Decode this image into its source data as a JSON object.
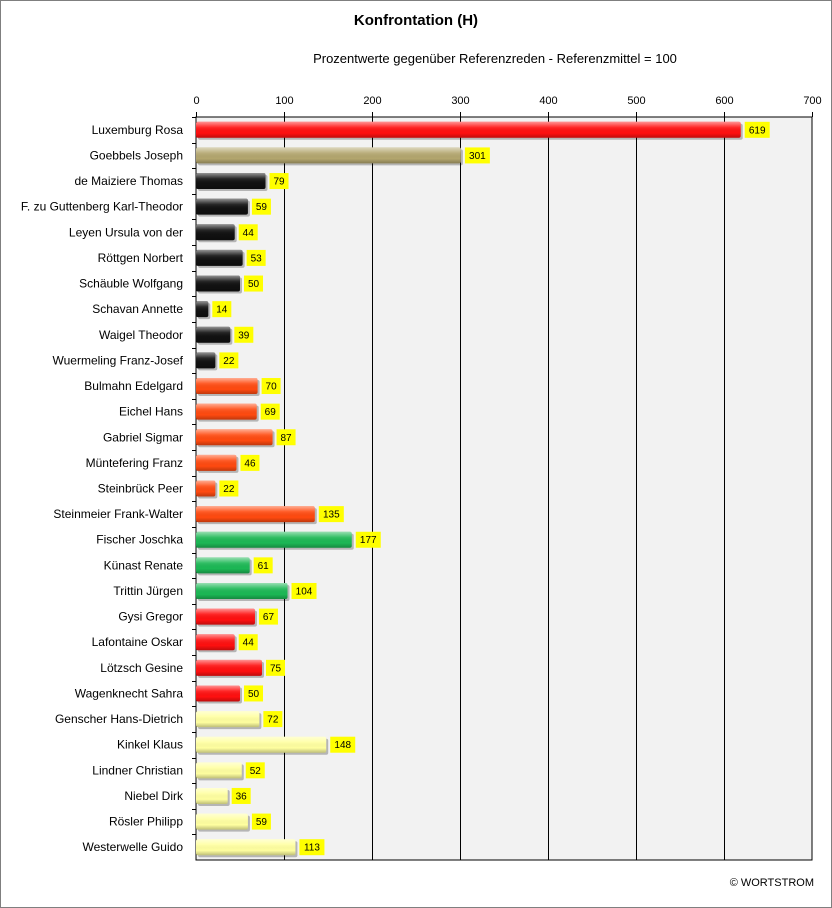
{
  "chart_data": {
    "type": "bar",
    "orientation": "horizontal",
    "title": "Konfrontation (H)",
    "subtitle": "Prozentwerte  gegenüber Referenzreden - Referenzmittel = 100",
    "xlim": [
      0,
      700
    ],
    "xticks": [
      0,
      100,
      200,
      300,
      400,
      500,
      600,
      700
    ],
    "grid": true,
    "data_labels": true,
    "categories": [
      "Luxemburg Rosa",
      "Goebbels Joseph",
      "de Maiziere Thomas",
      "F. zu Guttenberg Karl-Theodor",
      "Leyen Ursula von der",
      "Röttgen Norbert",
      "Schäuble Wolfgang",
      "Schavan Annette",
      "Waigel Theodor",
      "Wuermeling Franz-Josef",
      "Bulmahn Edelgard",
      "Eichel Hans",
      "Gabriel Sigmar",
      "Müntefering Franz",
      "Steinbrück Peer",
      "Steinmeier Frank-Walter",
      "Fischer Joschka",
      "Künast Renate",
      "Trittin Jürgen",
      "Gysi Gregor",
      "Lafontaine Oskar",
      "Lötzsch Gesine",
      "Wagenknecht Sahra",
      "Genscher Hans-Dietrich",
      "Kinkel Klaus",
      "Lindner Christian",
      "Niebel Dirk",
      "Rösler Philipp",
      "Westerwelle Guido"
    ],
    "values": [
      619,
      301,
      79,
      59,
      44,
      53,
      50,
      14,
      39,
      22,
      70,
      69,
      87,
      46,
      22,
      135,
      177,
      61,
      104,
      67,
      44,
      75,
      50,
      72,
      148,
      52,
      36,
      59,
      113
    ],
    "bar_colors": [
      "#ff1010",
      "#b3a66e",
      "#111111",
      "#111111",
      "#111111",
      "#111111",
      "#111111",
      "#111111",
      "#111111",
      "#111111",
      "#ff4a10",
      "#ff4a10",
      "#ff4a10",
      "#ff4a10",
      "#ff4a10",
      "#ff4a10",
      "#1cb855",
      "#1cb855",
      "#1cb855",
      "#ff1010",
      "#ff1010",
      "#ff1010",
      "#ff1010",
      "#ffffa0",
      "#ffffa0",
      "#ffffa0",
      "#ffffa0",
      "#ffffa0",
      "#ffffa0"
    ],
    "label_box_color": "#ffff00",
    "plot_background": "#f2f2f2"
  },
  "footer": {
    "copyright": "© WORTSTROM"
  }
}
